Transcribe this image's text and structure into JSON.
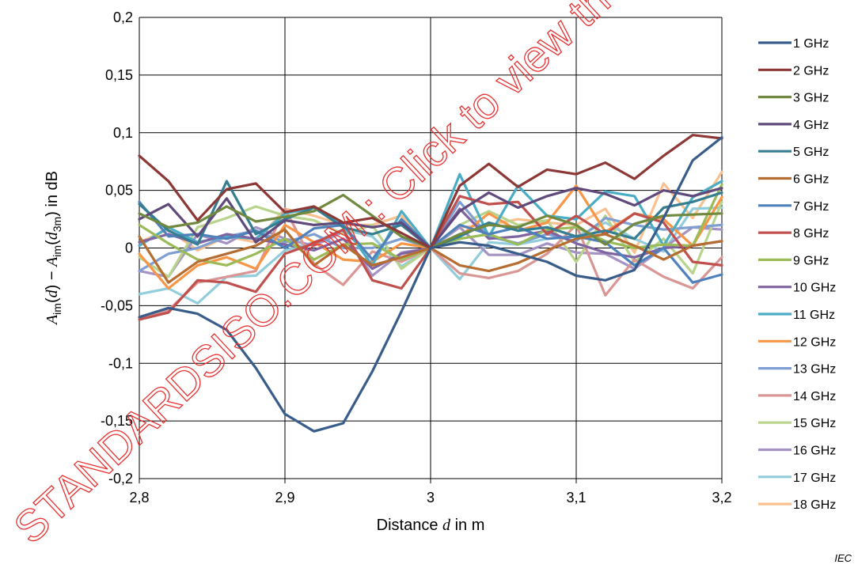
{
  "chart_data": {
    "type": "line",
    "title": "",
    "xlabel": "Distance d in m",
    "ylabel": "A_im(d) − A_im(d_3m) in dB",
    "xlim": [
      2.8,
      3.2
    ],
    "ylim": [
      -0.2,
      0.2
    ],
    "grid": true,
    "legend_position": "right",
    "x_tick_labels": [
      "2,8",
      "2,9",
      "3",
      "3,1",
      "3,2"
    ],
    "y_tick_labels": [
      "0,2",
      "0,15",
      "0,1",
      "0,05",
      "0",
      "-0,05",
      "-0,1",
      "-0,15",
      "-0,2"
    ],
    "x": [
      2.8,
      2.82,
      2.84,
      2.86,
      2.88,
      2.9,
      2.92,
      2.94,
      2.96,
      2.98,
      3.0,
      3.02,
      3.04,
      3.06,
      3.08,
      3.1,
      3.12,
      3.14,
      3.16,
      3.18,
      3.2
    ],
    "series": [
      {
        "name": "1 GHz",
        "color": "#385d8a",
        "values": [
          -0.06,
          -0.052,
          -0.057,
          -0.071,
          -0.104,
          -0.144,
          -0.159,
          -0.152,
          -0.107,
          -0.055,
          0.0,
          0.005,
          0.002,
          -0.005,
          -0.012,
          -0.024,
          -0.028,
          -0.019,
          0.026,
          0.076,
          0.096
        ]
      },
      {
        "name": "2 GHz",
        "color": "#8c3836",
        "values": [
          0.08,
          0.058,
          0.024,
          0.051,
          0.056,
          0.031,
          0.036,
          0.022,
          0.026,
          0.013,
          0.0,
          0.054,
          0.073,
          0.053,
          0.068,
          0.064,
          0.074,
          0.06,
          0.08,
          0.098,
          0.095
        ]
      },
      {
        "name": "3 GHz",
        "color": "#71893f",
        "values": [
          0.03,
          0.018,
          0.022,
          0.036,
          0.023,
          0.027,
          0.032,
          0.046,
          0.028,
          0.01,
          0.0,
          0.012,
          0.02,
          0.018,
          0.028,
          0.02,
          0.003,
          0.021,
          0.028,
          0.029,
          0.03
        ]
      },
      {
        "name": "4 GHz",
        "color": "#5f4a7b",
        "values": [
          0.025,
          0.038,
          0.01,
          0.043,
          0.005,
          0.024,
          0.02,
          0.022,
          0.018,
          0.022,
          0.0,
          0.032,
          0.048,
          0.035,
          0.045,
          0.052,
          0.047,
          0.037,
          0.05,
          0.045,
          0.052
        ]
      },
      {
        "name": "5 GHz",
        "color": "#357d91",
        "values": [
          0.038,
          0.015,
          0.003,
          0.058,
          0.012,
          0.025,
          0.035,
          0.018,
          0.012,
          0.02,
          0.0,
          0.01,
          0.022,
          0.015,
          0.018,
          0.01,
          0.015,
          0.008,
          0.035,
          0.04,
          0.048
        ]
      },
      {
        "name": "6 GHz",
        "color": "#b66d31",
        "values": [
          0.01,
          -0.03,
          -0.012,
          -0.005,
          0.002,
          0.016,
          -0.015,
          0.003,
          -0.015,
          -0.008,
          0.0,
          -0.015,
          -0.02,
          -0.013,
          -0.002,
          0.008,
          0.012,
          0.002,
          -0.01,
          0.002,
          0.006
        ]
      },
      {
        "name": "7 GHz",
        "color": "#4f81bd",
        "values": [
          0.04,
          0.01,
          0.012,
          0.008,
          0.015,
          0.0,
          0.017,
          0.02,
          -0.01,
          0.025,
          0.0,
          0.02,
          0.012,
          0.018,
          0.008,
          0.01,
          0.005,
          -0.015,
          0.0,
          -0.03,
          -0.023
        ]
      },
      {
        "name": "8 GHz",
        "color": "#c0504d",
        "values": [
          -0.062,
          -0.056,
          -0.028,
          -0.03,
          -0.038,
          -0.005,
          0.004,
          0.016,
          -0.028,
          -0.035,
          0.0,
          0.045,
          0.038,
          0.04,
          0.012,
          0.028,
          0.012,
          0.03,
          0.022,
          -0.012,
          -0.015
        ]
      },
      {
        "name": "9 GHz",
        "color": "#9bbb59",
        "values": [
          0.02,
          0.004,
          -0.01,
          -0.015,
          -0.005,
          0.008,
          -0.01,
          0.003,
          0.004,
          -0.01,
          0.0,
          0.008,
          0.012,
          0.003,
          0.016,
          0.018,
          0.006,
          0.0,
          0.003,
          0.002,
          0.055
        ]
      },
      {
        "name": "10 GHz",
        "color": "#8064a2",
        "values": [
          0.005,
          0.012,
          0.004,
          0.012,
          0.008,
          0.003,
          -0.002,
          0.008,
          -0.018,
          -0.005,
          0.0,
          0.034,
          0.008,
          0.01,
          0.015,
          0.004,
          -0.004,
          -0.008,
          0.0,
          0.002,
          0.006
        ]
      },
      {
        "name": "11 GHz",
        "color": "#4bacc6",
        "values": [
          0.002,
          0.018,
          0.005,
          0.01,
          0.008,
          0.03,
          0.035,
          0.02,
          -0.015,
          0.032,
          0.0,
          0.064,
          0.01,
          0.054,
          0.028,
          0.025,
          0.049,
          0.045,
          0.002,
          0.044,
          0.058
        ]
      },
      {
        "name": "12 GHz",
        "color": "#f79646",
        "values": [
          -0.005,
          -0.035,
          -0.015,
          -0.008,
          -0.018,
          0.02,
          0.005,
          -0.01,
          -0.012,
          0.004,
          0.0,
          0.01,
          0.03,
          0.015,
          0.022,
          0.054,
          0.014,
          0.03,
          0.025,
          0.002,
          0.044
        ]
      },
      {
        "name": "13 GHz",
        "color": "#7f9fd3",
        "values": [
          -0.02,
          -0.005,
          0.0,
          0.01,
          0.015,
          0.005,
          0.012,
          0.0,
          0.0,
          0.008,
          0.0,
          0.04,
          0.01,
          0.004,
          0.012,
          0.006,
          0.026,
          0.02,
          0.016,
          0.018,
          0.02
        ]
      },
      {
        "name": "14 GHz",
        "color": "#d99694",
        "values": [
          -0.06,
          -0.054,
          -0.03,
          -0.025,
          -0.02,
          0.034,
          -0.014,
          -0.032,
          -0.003,
          -0.012,
          0.0,
          -0.022,
          -0.026,
          -0.02,
          -0.005,
          0.02,
          -0.041,
          -0.01,
          -0.025,
          -0.035,
          -0.008
        ]
      },
      {
        "name": "15 GHz",
        "color": "#b8d48c",
        "values": [
          -0.008,
          -0.025,
          0.018,
          0.026,
          0.036,
          0.028,
          0.024,
          0.012,
          0.02,
          -0.018,
          0.0,
          0.02,
          0.032,
          0.02,
          0.024,
          -0.012,
          0.028,
          -0.012,
          0.008,
          -0.022,
          0.04
        ]
      },
      {
        "name": "16 GHz",
        "color": "#a593c4",
        "values": [
          -0.02,
          -0.025,
          0.012,
          0.004,
          0.018,
          0.008,
          0.002,
          0.014,
          -0.024,
          -0.004,
          0.0,
          0.018,
          -0.006,
          -0.006,
          0.004,
          -0.004,
          -0.005,
          -0.018,
          0.0,
          0.018,
          0.016
        ]
      },
      {
        "name": "17 GHz",
        "color": "#92cddc",
        "values": [
          -0.04,
          -0.035,
          -0.048,
          -0.025,
          -0.024,
          -0.002,
          0.005,
          0.016,
          0.01,
          -0.016,
          0.0,
          -0.027,
          0.005,
          0.003,
          0.008,
          0.01,
          0.022,
          0.008,
          -0.003,
          0.034,
          0.035
        ]
      },
      {
        "name": "18 GHz",
        "color": "#fac090",
        "values": [
          0.005,
          0.016,
          -0.002,
          0.01,
          0.005,
          0.034,
          0.028,
          0.02,
          0.02,
          0.028,
          0.0,
          0.018,
          0.02,
          0.025,
          0.022,
          0.02,
          0.034,
          -0.004,
          0.056,
          0.026,
          0.066
        ]
      }
    ]
  },
  "watermark_text": "STANDARDSISO.COM : Click to view the full PDF",
  "iec_mark": "IEC"
}
